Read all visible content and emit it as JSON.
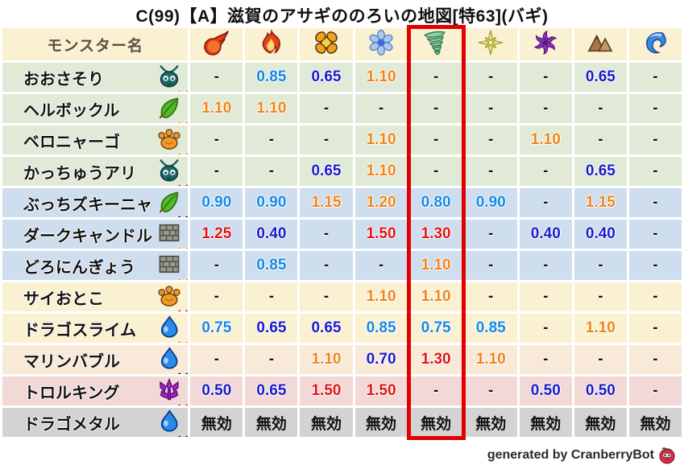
{
  "title": "C(99)【A】滋賀のアサギののろいの地図[特63](バギ)",
  "header": {
    "monster_column_label": "モンスター名",
    "element_icons": [
      "fireball-icon",
      "flame-icon",
      "burst-icon",
      "ice-icon",
      "tornado-icon",
      "spark-icon",
      "dark-swirl-icon",
      "earth-icon",
      "wave-icon"
    ]
  },
  "highlight": {
    "element_index": 4,
    "color": "#e00202"
  },
  "immune_label": "無効",
  "colors": {
    "header_bg": "#faf0d2",
    "row_green": "#e1e9d7",
    "row_blue": "#cedeee",
    "row_cream": "#faf0d2",
    "row_peach": "#f9e9d8",
    "row_pink": "#f2d8d6",
    "row_gray": "#d3d3d3",
    "value_deep_blue": "#1a1acd",
    "value_light_blue": "#1488e8",
    "value_orange": "#f08418",
    "value_red": "#e31212",
    "value_neutral": "#111111",
    "modifier_colors": {
      "1.0": "#111111",
      "1.1": "#f08418",
      "1.2": "#e31212"
    }
  },
  "rows": [
    {
      "name": "おおさそり",
      "family_icon": "bug-icon",
      "modifier": "1.1",
      "group": "green",
      "values": [
        "-",
        "0.85",
        "0.65",
        "1.10",
        "-",
        "-",
        "-",
        "0.65",
        "-"
      ]
    },
    {
      "name": "ヘルボックル",
      "family_icon": "leaf-icon",
      "modifier": "1.1",
      "group": "green",
      "values": [
        "1.10",
        "1.10",
        "-",
        "-",
        "-",
        "-",
        "-",
        "-",
        "-"
      ]
    },
    {
      "name": "ベロニャーゴ",
      "family_icon": "paw-icon",
      "modifier": "1.1",
      "group": "green",
      "values": [
        "-",
        "-",
        "-",
        "1.10",
        "-",
        "-",
        "1.10",
        "-",
        "-"
      ]
    },
    {
      "name": "かっちゅうアリ",
      "family_icon": "bug-icon",
      "modifier": "1.2",
      "group": "green",
      "values": [
        "-",
        "-",
        "0.65",
        "1.10",
        "-",
        "-",
        "-",
        "0.65",
        "-"
      ]
    },
    {
      "name": "ぶっちズキーニャ",
      "family_icon": "leaf-icon",
      "modifier": "1.0",
      "group": "blue",
      "values": [
        "0.90",
        "0.90",
        "1.15",
        "1.20",
        "0.80",
        "0.90",
        "-",
        "1.15",
        "-"
      ]
    },
    {
      "name": "ダークキャンドル",
      "family_icon": "brick-icon",
      "modifier": "1.1",
      "group": "blue",
      "values": [
        "1.25",
        "0.40",
        "-",
        "1.50",
        "1.30",
        "-",
        "0.40",
        "0.40",
        "-"
      ]
    },
    {
      "name": "どろにんぎょう",
      "family_icon": "brick-icon",
      "modifier": "1.1",
      "group": "blue",
      "values": [
        "-",
        "0.85",
        "-",
        "-",
        "1.10",
        "-",
        "-",
        "-",
        "-"
      ]
    },
    {
      "name": "サイおとこ",
      "family_icon": "paw-icon",
      "modifier": "1.2",
      "group": "cream",
      "values": [
        "-",
        "-",
        "-",
        "1.10",
        "1.10",
        "-",
        "-",
        "-",
        "-"
      ]
    },
    {
      "name": "ドラゴスライム",
      "family_icon": "slime-icon",
      "modifier": "1.1",
      "group": "cream",
      "values": [
        "0.75",
        "0.65",
        "0.65",
        "0.85",
        "0.75",
        "0.85",
        "-",
        "1.10",
        "-"
      ]
    },
    {
      "name": "マリンバブル",
      "family_icon": "slime-icon",
      "modifier": "1.0",
      "group": "peach",
      "values": [
        "-",
        "-",
        "1.10",
        "0.70",
        "1.30",
        "1.10",
        "-",
        "-",
        "-"
      ]
    },
    {
      "name": "トロルキング",
      "family_icon": "demon-icon",
      "modifier": "1.2",
      "group": "pink",
      "values": [
        "0.50",
        "0.65",
        "1.50",
        "1.50",
        "-",
        "-",
        "0.50",
        "0.50",
        "-"
      ]
    },
    {
      "name": "ドラゴメタル",
      "family_icon": "slime-icon",
      "modifier": "1.0",
      "group": "gray",
      "values": [
        "無効",
        "無効",
        "無効",
        "無効",
        "無効",
        "無効",
        "無効",
        "無効",
        "無効"
      ]
    }
  ],
  "footer": {
    "credit": "generated by CranberryBot",
    "icon": "cranberry-icon"
  },
  "chart_data": {
    "type": "table",
    "title": "C(99)【A】滋賀のアサギののろいの地図[特63](バギ)",
    "columns": [
      "monster-name",
      "fireball",
      "flame",
      "burst",
      "ice",
      "tornado",
      "spark",
      "dark-swirl",
      "earth",
      "wave"
    ],
    "highlighted_column": "tornado",
    "rows": [
      [
        "おおさそり (1.1)",
        "-",
        "0.85",
        "0.65",
        "1.10",
        "-",
        "-",
        "-",
        "0.65",
        "-"
      ],
      [
        "ヘルボックル (1.1)",
        "1.10",
        "1.10",
        "-",
        "-",
        "-",
        "-",
        "-",
        "-",
        "-"
      ],
      [
        "ベロニャーゴ (1.1)",
        "-",
        "-",
        "-",
        "1.10",
        "-",
        "-",
        "1.10",
        "-",
        "-"
      ],
      [
        "かっちゅうアリ (1.2)",
        "-",
        "-",
        "0.65",
        "1.10",
        "-",
        "-",
        "-",
        "0.65",
        "-"
      ],
      [
        "ぶっちズキーニャ (1.0)",
        "0.90",
        "0.90",
        "1.15",
        "1.20",
        "0.80",
        "0.90",
        "-",
        "1.15",
        "-"
      ],
      [
        "ダークキャンドル (1.1)",
        "1.25",
        "0.40",
        "-",
        "1.50",
        "1.30",
        "-",
        "0.40",
        "0.40",
        "-"
      ],
      [
        "どろにんぎょう (1.1)",
        "-",
        "0.85",
        "-",
        "-",
        "1.10",
        "-",
        "-",
        "-",
        "-"
      ],
      [
        "サイおとこ (1.2)",
        "-",
        "-",
        "-",
        "1.10",
        "1.10",
        "-",
        "-",
        "-",
        "-"
      ],
      [
        "ドラゴスライム (1.1)",
        "0.75",
        "0.65",
        "0.65",
        "0.85",
        "0.75",
        "0.85",
        "-",
        "1.10",
        "-"
      ],
      [
        "マリンバブル (1.0)",
        "-",
        "-",
        "1.10",
        "0.70",
        "1.30",
        "1.10",
        "-",
        "-",
        "-"
      ],
      [
        "トロルキング (1.2)",
        "0.50",
        "0.65",
        "1.50",
        "1.50",
        "-",
        "-",
        "0.50",
        "0.50",
        "-"
      ],
      [
        "ドラゴメタル (1.0)",
        "無効",
        "無効",
        "無効",
        "無効",
        "無効",
        "無効",
        "無効",
        "無効",
        "無効"
      ]
    ]
  }
}
